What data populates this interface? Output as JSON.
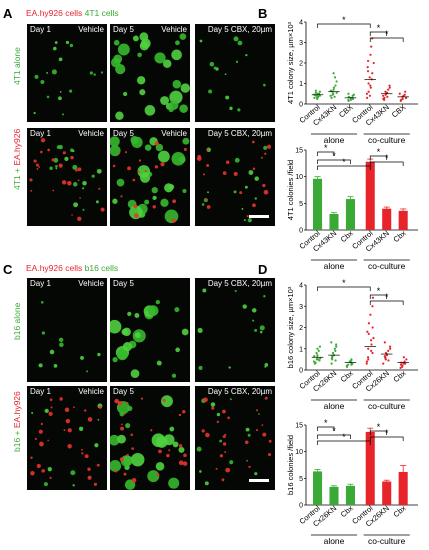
{
  "panels": {
    "A": {
      "letter": "A",
      "legend_red": "EA.hy926 cells",
      "legend_green": "4T1 cells",
      "row1_label": "4T1 alone",
      "row2_label_green": "4T1 +",
      "row2_label_red": "EA.hy926",
      "tiles": [
        {
          "left": "Day 1",
          "right": "Vehicle"
        },
        {
          "left": "Day 5",
          "right": "Vehicle"
        },
        {
          "left": "",
          "right": "Day 5 CBX, 20µm"
        }
      ]
    },
    "C": {
      "letter": "C",
      "legend_red": "EA.hy926 cells",
      "legend_green": "b16 cells",
      "row1_label": "b16 alone",
      "row2_label_green": "b16 +",
      "row2_label_red": "EA.hy926",
      "tiles": [
        {
          "left": "Day 1",
          "right": "Vehicle"
        },
        {
          "left": "Day 5",
          "right": ""
        },
        {
          "left": "",
          "right": "Day 5 CBX, 20µm"
        }
      ]
    },
    "B": {
      "letter": "B"
    },
    "D": {
      "letter": "D"
    }
  },
  "chart_data": [
    {
      "id": "B-top",
      "type": "scatter",
      "ylabel": "4T1 colony size, µm×10³",
      "ylim": [
        0,
        4
      ],
      "yticks": [
        "0",
        "1",
        "2",
        "3",
        "4"
      ],
      "categories": [
        "Control",
        "Cx43KN",
        "CBX",
        "Control",
        "Cx43KN",
        "CBX"
      ],
      "groups": [
        {
          "name": "alone",
          "span": [
            0,
            2
          ]
        },
        {
          "name": "co-culture",
          "span": [
            3,
            5
          ]
        }
      ],
      "colors": [
        "#3aa935",
        "#3aa935",
        "#3aa935",
        "#e8242b",
        "#e8242b",
        "#e8242b"
      ],
      "means": [
        0.45,
        0.6,
        0.3,
        1.2,
        0.5,
        0.35
      ],
      "significance": [
        [
          0,
          3,
          "*"
        ],
        [
          3,
          4,
          "*"
        ],
        [
          3,
          5,
          "*"
        ]
      ],
      "points": [
        [
          0.3,
          0.4,
          0.5,
          0.35,
          0.6,
          0.45,
          0.55,
          0.25,
          0.5,
          0.4,
          0.65,
          0.3,
          0.45
        ],
        [
          0.3,
          0.5,
          0.7,
          0.9,
          1.1,
          0.4,
          0.6,
          0.8,
          1.3,
          0.55,
          0.65,
          0.45,
          1.5,
          0.35
        ],
        [
          0.15,
          0.2,
          0.3,
          0.4,
          0.25,
          0.35,
          0.5,
          0.2,
          0.3,
          0.45
        ],
        [
          0.3,
          0.6,
          0.9,
          1.2,
          1.5,
          1.8,
          2.1,
          2.4,
          2.8,
          3.2,
          0.5,
          1.0,
          1.3,
          0.8,
          2.0,
          1.6,
          0.4
        ],
        [
          0.2,
          0.3,
          0.5,
          0.7,
          0.9,
          0.4,
          0.6,
          0.35,
          0.55,
          0.8,
          0.25,
          0.45
        ],
        [
          0.15,
          0.25,
          0.35,
          0.45,
          0.3,
          0.5,
          0.2,
          0.4,
          0.6,
          0.3
        ]
      ]
    },
    {
      "id": "B-bottom",
      "type": "bar",
      "ylabel": "4T1 colonies /field",
      "ylim": [
        0,
        15
      ],
      "yticks": [
        "0",
        "5",
        "10",
        "15"
      ],
      "categories": [
        "Control",
        "Cx43KN",
        "Cbx",
        "Control",
        "Cx43KN",
        "Cbx"
      ],
      "groups": [
        {
          "name": "alone",
          "span": [
            0,
            2
          ]
        },
        {
          "name": "co-culture",
          "span": [
            3,
            5
          ]
        }
      ],
      "colors": [
        "#3aa935",
        "#3aa935",
        "#3aa935",
        "#e8242b",
        "#e8242b",
        "#e8242b"
      ],
      "values": [
        9.6,
        3.0,
        5.8,
        12.8,
        4.0,
        3.6
      ],
      "errors": [
        0.4,
        0.25,
        0.45,
        0.5,
        0.3,
        0.35
      ],
      "significance": [
        [
          0,
          1,
          "*"
        ],
        [
          0,
          2,
          "*"
        ],
        [
          0,
          3,
          "*"
        ],
        [
          3,
          4,
          "*"
        ],
        [
          3,
          5,
          "*"
        ]
      ]
    },
    {
      "id": "D-top",
      "type": "scatter",
      "ylabel": "b16 colony size, µm×10³",
      "ylim": [
        0,
        4
      ],
      "yticks": [
        "0",
        "1",
        "2",
        "3",
        "4"
      ],
      "categories": [
        "Control",
        "Cx26KN",
        "Cbx",
        "Control",
        "Cx26KN",
        "Cbx"
      ],
      "groups": [
        {
          "name": "alone",
          "span": [
            0,
            2
          ]
        },
        {
          "name": "co-culture",
          "span": [
            3,
            5
          ]
        }
      ],
      "colors": [
        "#3aa935",
        "#3aa935",
        "#3aa935",
        "#e8242b",
        "#e8242b",
        "#e8242b"
      ],
      "means": [
        0.6,
        0.7,
        0.35,
        1.1,
        0.75,
        0.35
      ],
      "significance": [
        [
          0,
          3,
          "*"
        ],
        [
          3,
          4,
          "*"
        ],
        [
          3,
          5,
          "*"
        ]
      ],
      "points": [
        [
          0.3,
          0.5,
          0.7,
          0.9,
          1.1,
          0.4,
          0.6,
          0.8,
          0.45,
          0.55,
          0.65,
          0.35,
          1.0,
          0.5
        ],
        [
          0.3,
          0.5,
          0.7,
          0.9,
          1.1,
          1.3,
          0.6,
          0.8,
          0.45,
          1.2,
          0.55,
          0.65,
          1.0
        ],
        [
          0.15,
          0.25,
          0.35,
          0.45,
          0.3,
          0.2,
          0.4,
          0.5,
          0.25
        ],
        [
          0.3,
          0.6,
          0.9,
          1.2,
          1.5,
          1.8,
          2.2,
          2.6,
          3.0,
          3.4,
          0.5,
          1.0,
          1.4,
          0.8,
          2.0,
          0.4,
          1.7
        ],
        [
          0.3,
          0.5,
          0.7,
          0.9,
          1.1,
          1.3,
          0.6,
          0.8,
          0.45,
          1.0,
          0.65,
          0.55,
          0.75
        ],
        [
          0.1,
          0.2,
          0.3,
          0.4,
          0.5,
          0.25,
          0.35,
          0.15,
          0.6,
          0.3
        ]
      ]
    },
    {
      "id": "D-bottom",
      "type": "bar",
      "ylabel": "b16 colonies /field",
      "ylim": [
        0,
        15
      ],
      "yticks": [
        "0",
        "5",
        "10",
        "15"
      ],
      "categories": [
        "Control",
        "Cx26KN",
        "Cbx",
        "Control",
        "Cx26KN",
        "Cbx"
      ],
      "groups": [
        {
          "name": "alone",
          "span": [
            0,
            2
          ]
        },
        {
          "name": "co-culture",
          "span": [
            3,
            5
          ]
        }
      ],
      "colors": [
        "#3aa935",
        "#3aa935",
        "#3aa935",
        "#e8242b",
        "#e8242b",
        "#e8242b"
      ],
      "values": [
        6.3,
        3.4,
        3.6,
        13.7,
        4.4,
        6.2
      ],
      "errors": [
        0.35,
        0.2,
        0.3,
        0.7,
        0.25,
        1.2
      ],
      "significance": [
        [
          0,
          1,
          "*"
        ],
        [
          0,
          2,
          "*"
        ],
        [
          0,
          3,
          "*"
        ],
        [
          3,
          4,
          "*"
        ],
        [
          3,
          5,
          "*"
        ]
      ]
    }
  ]
}
